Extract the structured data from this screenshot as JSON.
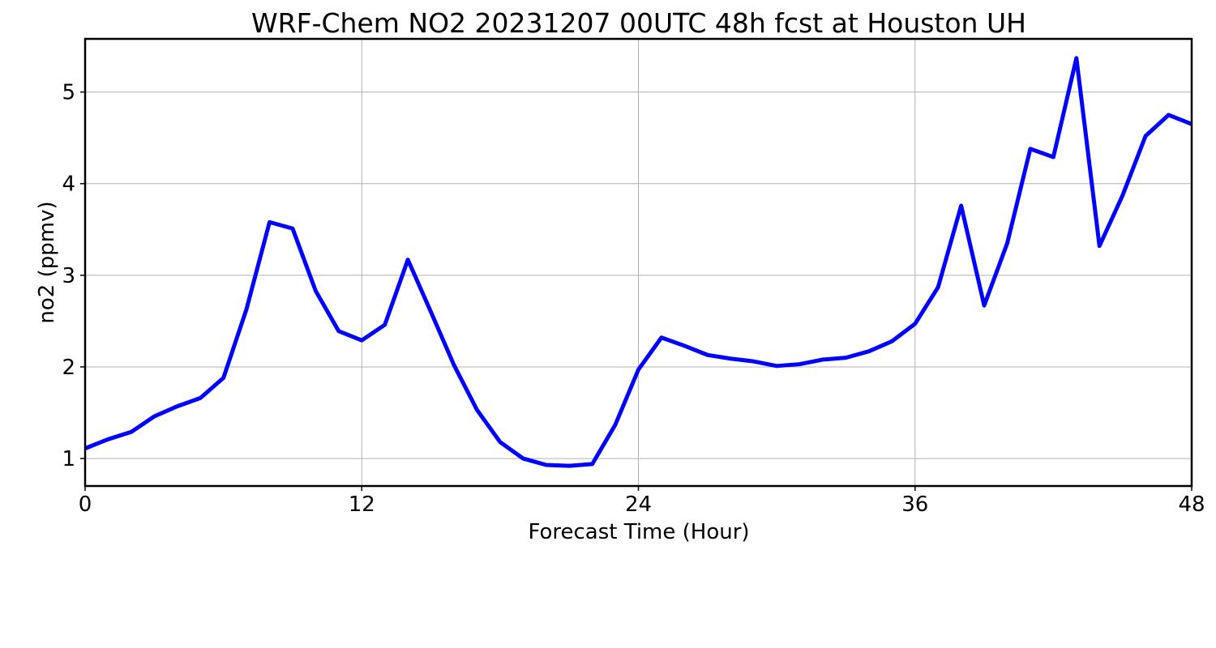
{
  "chart_data": {
    "type": "line",
    "title": "WRF-Chem NO2  20231207 00UTC 48h fcst at Houston UH",
    "xlabel": "Forecast Time (Hour)",
    "ylabel": "no2  (ppmv)",
    "xlim": [
      0,
      48
    ],
    "ylim": [
      0.7,
      5.58
    ],
    "xticks": [
      0,
      12,
      24,
      36,
      48
    ],
    "yticks": [
      1,
      2,
      3,
      4,
      5
    ],
    "grid": true,
    "legend": "none",
    "series": [
      {
        "color": "#0000ff",
        "x": [
          0,
          1,
          2,
          3,
          4,
          5,
          6,
          7,
          8,
          9,
          10,
          11,
          12,
          13,
          14,
          15,
          16,
          17,
          18,
          19,
          20,
          21,
          22,
          23,
          24,
          25,
          26,
          27,
          28,
          29,
          30,
          31,
          32,
          33,
          34,
          35,
          36,
          37,
          38,
          39,
          40,
          41,
          42,
          43,
          44,
          45,
          46,
          47,
          48
        ],
        "values": [
          1.11,
          1.21,
          1.29,
          1.46,
          1.57,
          1.66,
          1.88,
          2.63,
          3.58,
          3.51,
          2.83,
          2.39,
          2.29,
          2.46,
          3.17,
          2.6,
          2.02,
          1.53,
          1.18,
          1.0,
          0.93,
          0.92,
          0.94,
          1.37,
          1.97,
          2.32,
          2.23,
          2.13,
          2.09,
          2.06,
          2.01,
          2.03,
          2.08,
          2.1,
          2.17,
          2.28,
          2.47,
          2.87,
          3.76,
          2.67,
          3.35,
          4.38,
          4.29,
          5.37,
          3.32,
          3.87,
          4.52,
          4.75,
          4.65
        ]
      }
    ]
  }
}
